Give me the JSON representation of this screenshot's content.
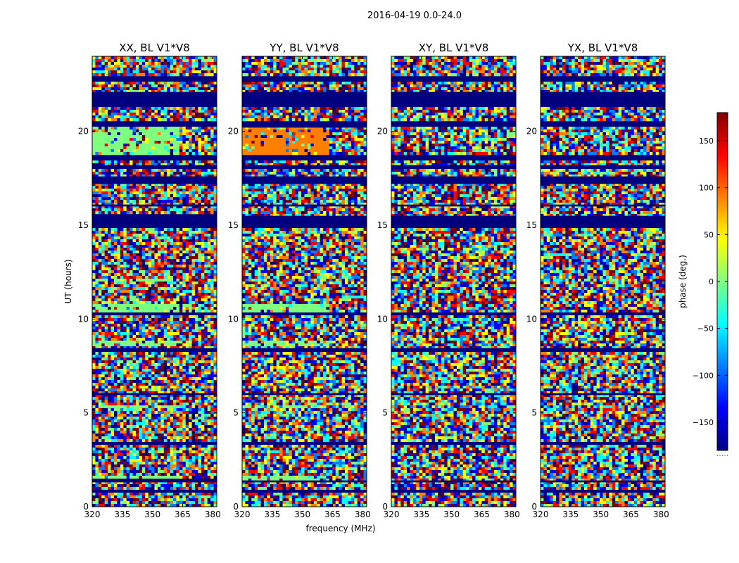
{
  "figure_title": "2016-04-19 0.0-24.0",
  "colormap": [
    "#00007f",
    "#0000ff",
    "#007fff",
    "#00ffff",
    "#7fff7f",
    "#ffff00",
    "#ff7f00",
    "#ff0000",
    "#7f0000"
  ],
  "chart_data": [
    {
      "type": "heatmap",
      "title": "XX, BL V1*V8",
      "xlabel": "frequency (MHz)",
      "ylabel": "UT (hours)",
      "xlim": [
        320,
        382
      ],
      "ylim": [
        0,
        24
      ],
      "xticks": [
        "320",
        "335",
        "350",
        "365",
        "380"
      ],
      "yticks": [
        "0",
        "5",
        "10",
        "15",
        "20"
      ],
      "masked_bands": [
        [
          0.8,
          0.9
        ],
        [
          1.3,
          1.45
        ],
        [
          3.35,
          3.45
        ],
        [
          5.95,
          6.05
        ],
        [
          8.3,
          8.45
        ],
        [
          10.2,
          10.35
        ],
        [
          14.85,
          15.55
        ],
        [
          16.0,
          16.1
        ],
        [
          17.2,
          17.6
        ],
        [
          18.0,
          18.2
        ],
        [
          18.5,
          18.7
        ],
        [
          20.3,
          20.5
        ],
        [
          21.3,
          22.1
        ],
        [
          22.7,
          22.9
        ]
      ],
      "bright_bands": [
        [
          1.45,
          1.7
        ],
        [
          5.25,
          5.45
        ],
        [
          8.6,
          8.8
        ],
        [
          10.4,
          10.8
        ],
        [
          12.0,
          12.2
        ],
        [
          18.7,
          20.2
        ]
      ]
    },
    {
      "type": "heatmap",
      "title": "YY, BL V1*V8",
      "xlabel": "",
      "ylabel": "",
      "xlim": [
        320,
        382
      ],
      "ylim": [
        0,
        24
      ],
      "xticks": [
        "320",
        "335",
        "350",
        "365",
        "380"
      ],
      "yticks": [
        "0",
        "5",
        "10",
        "15",
        "20"
      ],
      "masked_bands": [
        [
          0.8,
          0.9
        ],
        [
          1.3,
          1.4
        ],
        [
          3.35,
          3.45
        ],
        [
          5.95,
          6.05
        ],
        [
          8.3,
          8.45
        ],
        [
          10.2,
          10.35
        ],
        [
          14.85,
          15.5
        ],
        [
          16.0,
          16.1
        ],
        [
          17.2,
          17.6
        ],
        [
          18.0,
          18.2
        ],
        [
          18.5,
          18.7
        ],
        [
          20.2,
          20.5
        ],
        [
          21.3,
          22.1
        ],
        [
          22.7,
          22.9
        ]
      ],
      "bright_bands": [
        [
          1.4,
          1.6
        ],
        [
          5.25,
          5.45
        ],
        [
          8.6,
          8.8
        ],
        [
          10.4,
          10.8
        ],
        [
          18.7,
          20.2
        ]
      ]
    },
    {
      "type": "heatmap",
      "title": "XY, BL V1*V8",
      "xlabel": "",
      "ylabel": "",
      "xlim": [
        320,
        382
      ],
      "ylim": [
        0,
        24
      ],
      "xticks": [
        "320",
        "335",
        "350",
        "365",
        "380"
      ],
      "yticks": [
        "0",
        "5",
        "10",
        "15",
        "20"
      ],
      "masked_bands": [
        [
          0.8,
          0.9
        ],
        [
          1.3,
          1.4
        ],
        [
          3.35,
          3.45
        ],
        [
          5.95,
          6.05
        ],
        [
          8.3,
          8.45
        ],
        [
          10.2,
          10.35
        ],
        [
          14.85,
          15.5
        ],
        [
          16.0,
          16.1
        ],
        [
          17.2,
          17.6
        ],
        [
          18.0,
          18.2
        ],
        [
          18.5,
          18.7
        ],
        [
          20.3,
          20.5
        ],
        [
          21.3,
          22.1
        ],
        [
          22.7,
          22.9
        ]
      ],
      "bright_bands": []
    },
    {
      "type": "heatmap",
      "title": "YX, BL V1*V8",
      "xlabel": "",
      "ylabel": "",
      "xlim": [
        320,
        382
      ],
      "ylim": [
        0,
        24
      ],
      "xticks": [
        "320",
        "335",
        "350",
        "365",
        "380"
      ],
      "yticks": [
        "0",
        "5",
        "10",
        "15",
        "20"
      ],
      "masked_bands": [
        [
          0.8,
          0.9
        ],
        [
          1.3,
          1.4
        ],
        [
          3.35,
          3.45
        ],
        [
          5.95,
          6.05
        ],
        [
          8.3,
          8.45
        ],
        [
          10.2,
          10.35
        ],
        [
          14.85,
          15.5
        ],
        [
          16.0,
          16.1
        ],
        [
          17.2,
          17.6
        ],
        [
          18.0,
          18.2
        ],
        [
          18.5,
          18.7
        ],
        [
          20.3,
          20.5
        ],
        [
          21.3,
          22.1
        ],
        [
          22.7,
          22.9
        ]
      ],
      "bright_bands": []
    }
  ],
  "colorbar": {
    "label": "phase (deg.)",
    "range": [
      -180,
      180
    ],
    "ticks": [
      "150",
      "100",
      "50",
      "0",
      "−50",
      "−100",
      "−150"
    ],
    "tick_values": [
      150,
      100,
      50,
      0,
      -50,
      -100,
      -150
    ],
    "footer": "....."
  }
}
